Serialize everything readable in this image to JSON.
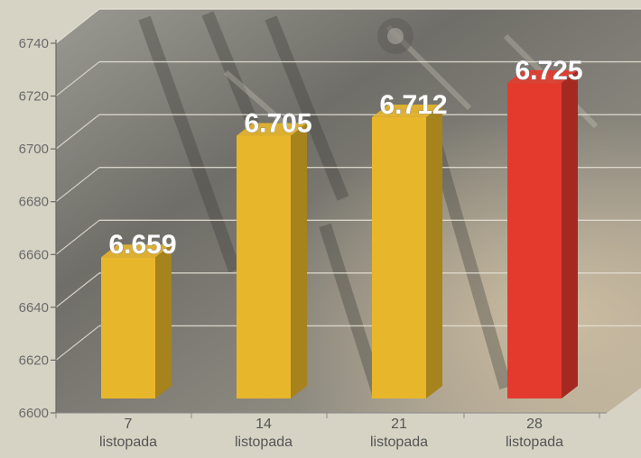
{
  "chart_data": {
    "type": "bar",
    "categories": [
      [
        "7",
        "listopada"
      ],
      [
        "14",
        "listopada"
      ],
      [
        "21",
        "listopada"
      ],
      [
        "28",
        "listopada"
      ]
    ],
    "values": [
      6659,
      6705,
      6712,
      6725
    ],
    "value_labels": [
      "6.659",
      "6.705",
      "6.712",
      "6.725"
    ],
    "bar_colors": [
      "#e8b62a",
      "#e8b62a",
      "#e8b62a",
      "#e43a2e"
    ],
    "yticks": [
      6600,
      6620,
      6640,
      6660,
      6680,
      6700,
      6720,
      6740
    ],
    "ylim": [
      6600,
      6750
    ],
    "grid": true
  }
}
